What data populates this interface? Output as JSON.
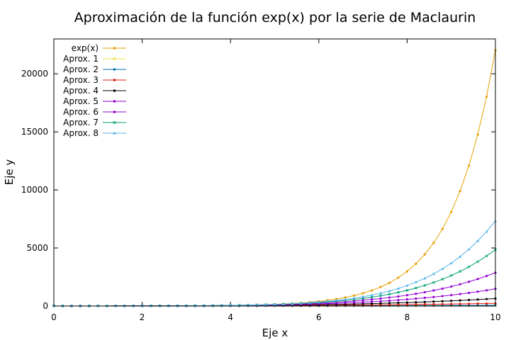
{
  "chart_data": {
    "type": "line",
    "title": "Aproximación de la función exp(x) por la serie de Maclaurin",
    "xlabel": "Eje x",
    "ylabel": "Eje y",
    "xlim": [
      0,
      10
    ],
    "ylim": [
      0,
      23000
    ],
    "xticks": [
      0,
      2,
      4,
      6,
      8,
      10
    ],
    "yticks": [
      0,
      5000,
      10000,
      15000,
      20000
    ],
    "grid": false,
    "legend_position": "top-left",
    "samples": {
      "x_start": 0,
      "x_end": 10,
      "count": 51
    },
    "series": [
      {
        "name": "exp(x)",
        "color": "#e69f00",
        "marker": "circle",
        "terms": "exact"
      },
      {
        "name": "Aprox. 1",
        "color": "#f0e442",
        "marker": "circle",
        "terms": 1
      },
      {
        "name": "Aprox. 2",
        "color": "#0072b2",
        "marker": "circle",
        "terms": 2
      },
      {
        "name": "Aprox. 3",
        "color": "#e51e10",
        "marker": "circle",
        "terms": 3
      },
      {
        "name": "Aprox. 4",
        "color": "#000000",
        "marker": "circle",
        "terms": 4
      },
      {
        "name": "Aprox. 5",
        "color": "#9400d3",
        "marker": "circle",
        "terms": 5
      },
      {
        "name": "Aprox. 6",
        "color": "#9400d3",
        "marker": "circle",
        "terms": 6
      },
      {
        "name": "Aprox. 7",
        "color": "#009e73",
        "marker": "cross",
        "terms": 7
      },
      {
        "name": "Aprox. 8",
        "color": "#56b4e9",
        "marker": "triangle",
        "terms": 8
      }
    ]
  }
}
